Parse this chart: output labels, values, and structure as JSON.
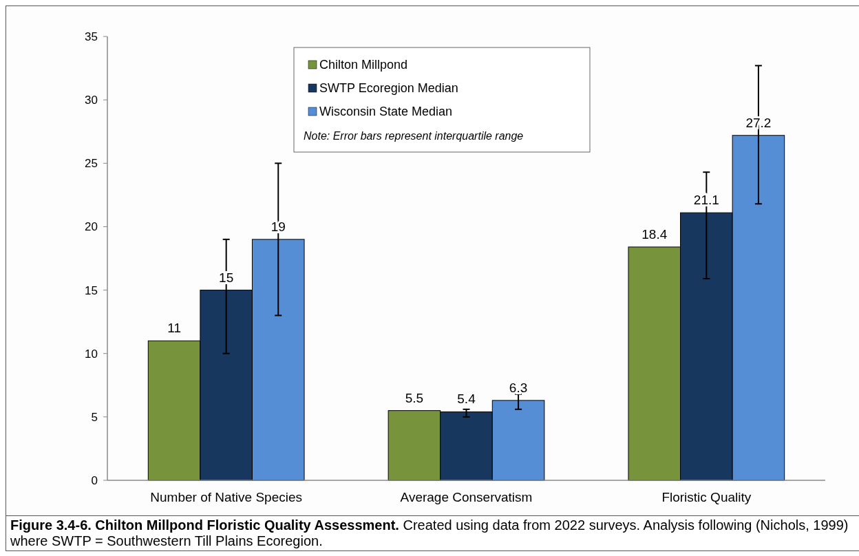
{
  "chart_data": {
    "type": "bar",
    "title": "Figure 3.4-6.  Chilton Millpond Floristic Quality Assessment.",
    "categories": [
      "Number of Native Species",
      "Average Conservatism",
      "Floristic Quality"
    ],
    "series": [
      {
        "name": "Chilton Millpond",
        "color": "#77933c",
        "values": [
          11,
          5.5,
          18.4
        ]
      },
      {
        "name": "SWTP Ecoregion Median",
        "color": "#17375e",
        "values": [
          15,
          5.4,
          21.1
        ],
        "errors": [
          [
            10,
            19
          ],
          [
            5.0,
            5.6
          ],
          [
            15.9,
            24.3
          ]
        ]
      },
      {
        "name": "Wisconsin State Median",
        "color": "#558ed5",
        "values": [
          19,
          6.3,
          27.2
        ],
        "errors": [
          [
            13,
            25
          ],
          [
            5.6,
            6.8
          ],
          [
            21.8,
            32.7
          ]
        ]
      }
    ],
    "ylim": [
      0,
      35
    ],
    "yticks": [
      0,
      5,
      10,
      15,
      20,
      25,
      30,
      35
    ],
    "grid": false,
    "legend": "top",
    "data_labels": true,
    "annotations": [
      "Note: Error bars represent interquartile range",
      "Created using data from 2022 surveys. Analysis following (Nichols, 1999) where SWTP = Southwestern Till Plains Ecoregion."
    ]
  }
}
